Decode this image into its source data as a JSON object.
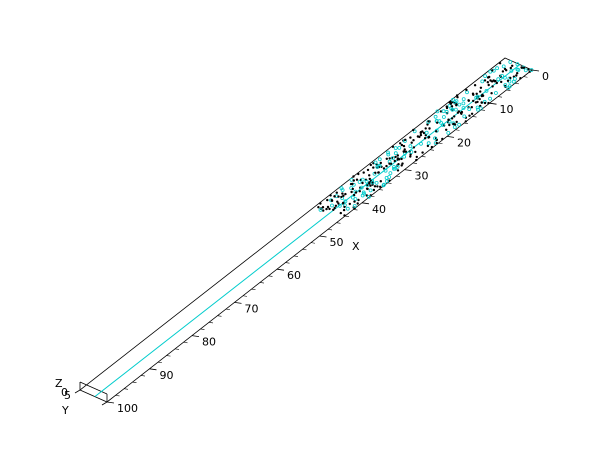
{
  "chart_data": {
    "type": "scatter3d",
    "title": "",
    "xlabel": "X",
    "ylabel": "Y",
    "zlabel": "Z",
    "xlim": [
      0,
      100
    ],
    "ylim": [
      0,
      5
    ],
    "zlim": [
      0,
      0
    ],
    "x_ticks": [
      "0",
      "10",
      "20",
      "30",
      "40",
      "50",
      "60",
      "70",
      "80",
      "90",
      "100"
    ],
    "y_ticks": [
      "0",
      "5"
    ],
    "z_ticks": [],
    "populated_x_range": [
      0,
      45
    ],
    "point_density_note": "Dense random point cloud for x in [0,45], y in [0,5]; markers are dark dots with cyan accents",
    "colors": {
      "axes": "#000000",
      "line": "#00cccc",
      "marker": "#000000",
      "marker_accent": "#00cccc"
    }
  }
}
